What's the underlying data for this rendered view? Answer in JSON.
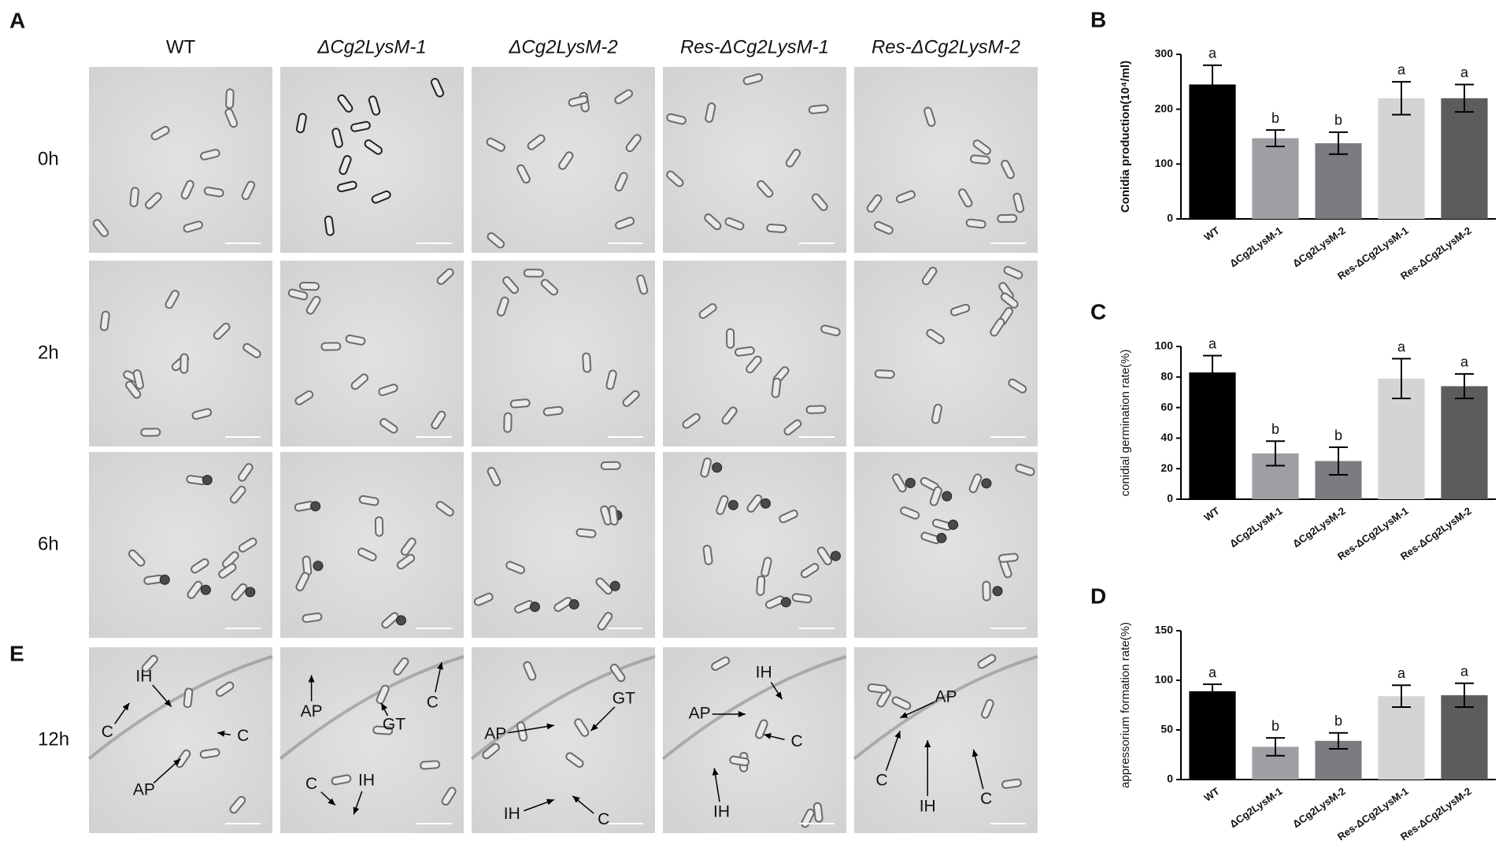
{
  "panel_labels": {
    "a": "A",
    "e": "E"
  },
  "micrographs": {
    "columns": [
      "WT",
      "ΔCg2LysM-1",
      "ΔCg2LysM-2",
      "Res-ΔCg2LysM-1",
      "Res-ΔCg2LysM-2"
    ],
    "rows": [
      "0h",
      "2h",
      "6h",
      "12h"
    ],
    "annotations": [
      [
        "IH",
        "C",
        "C",
        "AP"
      ],
      [
        "AP",
        "C",
        "GT",
        "C",
        "IH"
      ],
      [
        "GT",
        "AP",
        "IH",
        "C"
      ],
      [
        "IH",
        "AP",
        "C",
        "IH"
      ],
      [
        "AP",
        "C",
        "IH",
        "C"
      ]
    ]
  },
  "chart_data": [
    {
      "type": "bar",
      "panel": "B",
      "ylabel": "Conidia production(10⁴/ml)",
      "categories": [
        "WT",
        "ΔCg2LysM-1",
        "ΔCg2LysM-2",
        "Res-ΔCg2LysM-1",
        "Res-ΔCg2LysM-2"
      ],
      "values": [
        245,
        147,
        138,
        220,
        220
      ],
      "errors": [
        35,
        15,
        20,
        30,
        25
      ],
      "annotations": [
        "a",
        "b",
        "b",
        "a",
        "a"
      ],
      "colors": [
        "#000000",
        "#9e9ea3",
        "#7b7b80",
        "#d4d4d6",
        "#5c5c5f"
      ],
      "ylim": [
        0,
        300
      ],
      "yticks": [
        0,
        100,
        200,
        300
      ]
    },
    {
      "type": "bar",
      "panel": "C",
      "ylabel": "conidial germination rate(%)",
      "categories": [
        "WT",
        "ΔCg2LysM-1",
        "ΔCg2LysM-2",
        "Res-ΔCg2LysM-1",
        "Res-ΔCg2LysM-2"
      ],
      "values": [
        83,
        30,
        25,
        79,
        74
      ],
      "errors": [
        11,
        8,
        9,
        13,
        8
      ],
      "annotations": [
        "a",
        "b",
        "b",
        "a",
        "a"
      ],
      "colors": [
        "#000000",
        "#9e9ea3",
        "#7b7b80",
        "#d4d4d6",
        "#5c5c5f"
      ],
      "ylim": [
        0,
        100
      ],
      "yticks": [
        0,
        20,
        40,
        60,
        80,
        100
      ]
    },
    {
      "type": "bar",
      "panel": "D",
      "ylabel": "appressorium formation rate(%)",
      "categories": [
        "WT",
        "ΔCg2LysM-1",
        "ΔCg2LysM-2",
        "Res-ΔCg2LysM-1",
        "Res-ΔCg2LysM-2"
      ],
      "values": [
        89,
        33,
        39,
        84,
        85
      ],
      "errors": [
        7,
        9,
        8,
        11,
        12
      ],
      "annotations": [
        "a",
        "b",
        "b",
        "a",
        "a"
      ],
      "colors": [
        "#000000",
        "#9e9ea3",
        "#7b7b80",
        "#d4d4d6",
        "#5c5c5f"
      ],
      "ylim": [
        0,
        150
      ],
      "yticks": [
        0,
        50,
        100,
        150
      ]
    }
  ]
}
